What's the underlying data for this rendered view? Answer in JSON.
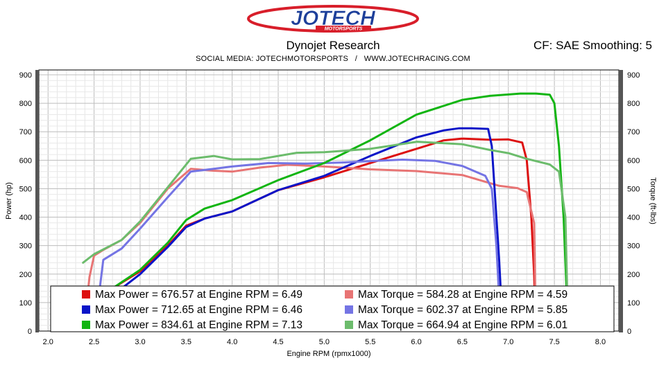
{
  "header": {
    "logo_text": "JOTECH",
    "logo_subtext": "MOTORSPORTS",
    "title": "Dynojet Research",
    "correction": "CF: SAE Smoothing: 5",
    "social": "SOCIAL MEDIA: JOTECHMOTORSPORTS   /   WWW.JOTECHRACING.COM"
  },
  "colors": {
    "red": "#dd1010",
    "blue": "#0a14c8",
    "green": "#12b512",
    "red_light": "#e87474",
    "blue_light": "#7474e4",
    "green_light": "#6cbc6c",
    "logo_red": "#d81e2a",
    "logo_blue": "#1d3f9a"
  },
  "chart_data": {
    "type": "line",
    "xlabel": "Engine RPM (rpmx1000)",
    "ylabel_left": "Power (hp)",
    "ylabel_right": "Torque (ft-lbs)",
    "xlim": [
      1.9,
      8.2
    ],
    "ylim": [
      0,
      900
    ],
    "x_ticks": [
      "2.0",
      "2.5",
      "3.0",
      "3.5",
      "4.0",
      "4.5",
      "5.0",
      "5.5",
      "6.0",
      "6.5",
      "7.0",
      "7.5",
      "8.0"
    ],
    "y_ticks": [
      "0",
      "100",
      "200",
      "300",
      "400",
      "500",
      "600",
      "700",
      "800",
      "900"
    ],
    "grid": true,
    "legend": {
      "placement": "bottom",
      "entries": [
        {
          "label": "Max Power = 676.57 at Engine RPM = 6.49",
          "color": "#dd1010"
        },
        {
          "label": "Max Torque = 584.28 at Engine RPM = 4.59",
          "color": "#e87474"
        },
        {
          "label": "Max Power = 712.65 at Engine RPM = 6.46",
          "color": "#0a14c8"
        },
        {
          "label": "Max Torque = 602.37 at Engine RPM = 5.85",
          "color": "#7474e4"
        },
        {
          "label": "Max Power = 834.61 at Engine RPM = 7.13",
          "color": "#12b512"
        },
        {
          "label": "Max Torque = 664.94 at Engine RPM = 6.01",
          "color": "#6cbc6c"
        }
      ]
    },
    "series": [
      {
        "axis": "power",
        "color": "#dd1010",
        "points": [
          [
            2.55,
            100
          ],
          [
            2.7,
            150
          ],
          [
            3.0,
            210
          ],
          [
            3.3,
            300
          ],
          [
            3.5,
            370
          ],
          [
            3.7,
            395
          ],
          [
            4.0,
            420
          ],
          [
            4.5,
            495
          ],
          [
            5.0,
            540
          ],
          [
            5.5,
            590
          ],
          [
            6.0,
            640
          ],
          [
            6.3,
            670
          ],
          [
            6.5,
            676
          ],
          [
            6.8,
            672
          ],
          [
            7.0,
            673
          ],
          [
            7.15,
            662
          ],
          [
            7.2,
            600
          ],
          [
            7.25,
            400
          ],
          [
            7.28,
            200
          ],
          [
            7.3,
            0
          ]
        ]
      },
      {
        "axis": "torque",
        "color": "#e87474",
        "points": [
          [
            2.42,
            100
          ],
          [
            2.45,
            190
          ],
          [
            2.5,
            265
          ],
          [
            2.6,
            285
          ],
          [
            2.8,
            320
          ],
          [
            3.0,
            380
          ],
          [
            3.3,
            500
          ],
          [
            3.55,
            570
          ],
          [
            3.8,
            563
          ],
          [
            4.0,
            560
          ],
          [
            4.3,
            574
          ],
          [
            4.6,
            584
          ],
          [
            5.0,
            578
          ],
          [
            5.5,
            568
          ],
          [
            6.0,
            562
          ],
          [
            6.5,
            548
          ],
          [
            6.9,
            510
          ],
          [
            7.1,
            502
          ],
          [
            7.2,
            488
          ],
          [
            7.28,
            380
          ],
          [
            7.3,
            0
          ]
        ]
      },
      {
        "axis": "power",
        "color": "#0a14c8",
        "points": [
          [
            2.6,
            100
          ],
          [
            2.8,
            150
          ],
          [
            3.0,
            200
          ],
          [
            3.3,
            295
          ],
          [
            3.5,
            365
          ],
          [
            3.7,
            395
          ],
          [
            4.0,
            420
          ],
          [
            4.5,
            495
          ],
          [
            5.0,
            545
          ],
          [
            5.5,
            615
          ],
          [
            6.0,
            680
          ],
          [
            6.3,
            705
          ],
          [
            6.46,
            712
          ],
          [
            6.6,
            712
          ],
          [
            6.78,
            710
          ],
          [
            6.82,
            650
          ],
          [
            6.86,
            450
          ],
          [
            6.9,
            250
          ],
          [
            6.94,
            0
          ]
        ]
      },
      {
        "axis": "torque",
        "color": "#7474e4",
        "points": [
          [
            2.55,
            120
          ],
          [
            2.6,
            250
          ],
          [
            2.8,
            290
          ],
          [
            3.0,
            360
          ],
          [
            3.3,
            470
          ],
          [
            3.55,
            560
          ],
          [
            3.8,
            570
          ],
          [
            4.0,
            578
          ],
          [
            4.4,
            590
          ],
          [
            4.8,
            588
          ],
          [
            5.2,
            592
          ],
          [
            5.5,
            597
          ],
          [
            5.85,
            602
          ],
          [
            6.2,
            598
          ],
          [
            6.5,
            580
          ],
          [
            6.75,
            545
          ],
          [
            6.82,
            500
          ],
          [
            6.87,
            300
          ],
          [
            6.92,
            0
          ]
        ]
      },
      {
        "axis": "power",
        "color": "#12b512",
        "points": [
          [
            2.6,
            100
          ],
          [
            2.7,
            150
          ],
          [
            3.0,
            215
          ],
          [
            3.3,
            310
          ],
          [
            3.5,
            390
          ],
          [
            3.7,
            430
          ],
          [
            4.0,
            460
          ],
          [
            4.5,
            530
          ],
          [
            5.0,
            590
          ],
          [
            5.5,
            670
          ],
          [
            6.0,
            760
          ],
          [
            6.5,
            812
          ],
          [
            6.8,
            826
          ],
          [
            7.13,
            834
          ],
          [
            7.3,
            834
          ],
          [
            7.45,
            830
          ],
          [
            7.5,
            800
          ],
          [
            7.55,
            650
          ],
          [
            7.6,
            400
          ],
          [
            7.65,
            0
          ]
        ]
      },
      {
        "axis": "torque",
        "color": "#6cbc6c",
        "points": [
          [
            2.38,
            240
          ],
          [
            2.5,
            270
          ],
          [
            2.8,
            320
          ],
          [
            3.0,
            385
          ],
          [
            3.3,
            505
          ],
          [
            3.55,
            605
          ],
          [
            3.8,
            615
          ],
          [
            4.0,
            603
          ],
          [
            4.3,
            604
          ],
          [
            4.7,
            626
          ],
          [
            5.0,
            628
          ],
          [
            5.5,
            640
          ],
          [
            6.01,
            665
          ],
          [
            6.5,
            656
          ],
          [
            6.8,
            636
          ],
          [
            7.0,
            625
          ],
          [
            7.2,
            605
          ],
          [
            7.45,
            585
          ],
          [
            7.55,
            560
          ],
          [
            7.62,
            400
          ],
          [
            7.65,
            0
          ]
        ]
      }
    ]
  }
}
